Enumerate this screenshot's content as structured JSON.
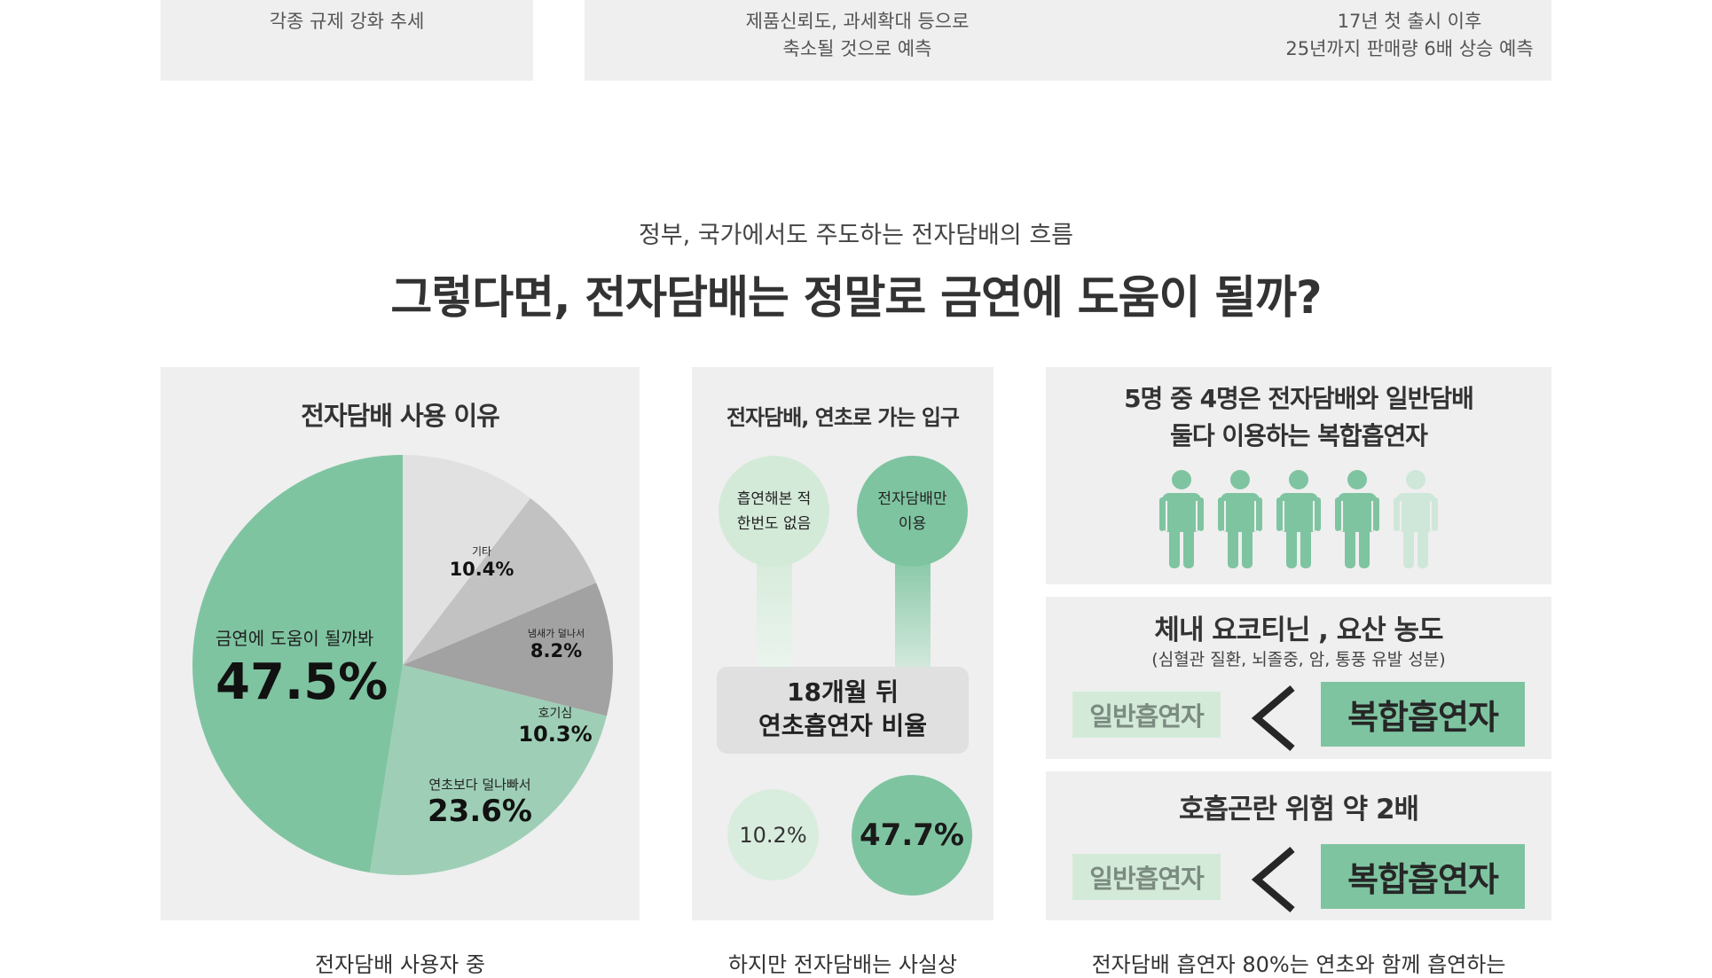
{
  "top_cards": {
    "left_text": "각종 규제 강화 추세",
    "mid_line1": "제품신뢰도, 과세확대 등으로",
    "mid_line2": "축소될 것으로 예측",
    "right_line1": "17년 첫 출시 이후",
    "right_line2": "25년까지 판매량 6배 상승 예측"
  },
  "section": {
    "subtitle": "정부, 국가에서도 주도하는 전자담배의 흐름",
    "title": "그렇다면, 전자담배는 정말로 금연에 도움이 될까?"
  },
  "reasons_panel": {
    "title": "전자담배 사용 이유",
    "bottom_caption_cut": "전자담배 사용자 중"
  },
  "chart_data": {
    "type": "pie",
    "title": "전자담배 사용 이유",
    "slices": [
      {
        "label": "기타",
        "value": 10.4,
        "display": "10.4%",
        "color": "#e1e1e1"
      },
      {
        "label": "냄새가 덜나서",
        "value": 8.2,
        "display": "8.2%",
        "color": "#c2c2c2"
      },
      {
        "label": "호기심",
        "value": 10.3,
        "display": "10.3%",
        "color": "#a2a2a2"
      },
      {
        "label": "연초보다 덜나빠서",
        "value": 23.6,
        "display": "23.6%",
        "color": "#9ecfb6"
      },
      {
        "label": "금연에 도움이 될까봐",
        "value": 47.5,
        "display": "47.5%",
        "color": "#7fc4a1"
      }
    ]
  },
  "gateway_panel": {
    "title": "전자담배, 연초로 가는 입구",
    "never_smoked": [
      "흡연해본 적",
      "한번도 없음"
    ],
    "ecig_only": [
      "전자담배만",
      "이용"
    ],
    "box_line1": "18개월 뒤",
    "box_line2": "연초흡연자 비율",
    "never_smoked_rate": "10.2%",
    "ecig_only_rate": "47.7%",
    "never_smoked_rate_value": 10.2,
    "ecig_only_rate_value": 47.7,
    "bottom_caption_cut": "하지만 전자담배는 사실상"
  },
  "dual_panel": {
    "title_line1": "5명 중 4명은 전자담배와 일반담배",
    "title_line2": "둘다 이용하는 복합흡연자",
    "people_highlighted": 4,
    "people_total": 5,
    "person_icon": "person-icon"
  },
  "nicotine_panel": {
    "title": "체내 요코티닌 , 요산 농도",
    "subtitle": "(심혈관 질환, 뇌졸중, 암, 통풍 유발 성분)",
    "left_tag": "일반흡연자",
    "right_tag": "복합흡연자",
    "comparator": "<"
  },
  "breath_panel": {
    "title": "호흡곤란 위험 약 2배",
    "left_tag": "일반흡연자",
    "right_tag": "복합흡연자",
    "comparator": "<",
    "bottom_caption_cut": "전자담배 흡연자 80%는 연초와 함께 흡연하는"
  },
  "colors": {
    "green": "#7fc4a1",
    "light_green": "#9ecfb6",
    "pale_green": "#d4ead9",
    "panel_bg": "#efefef"
  }
}
